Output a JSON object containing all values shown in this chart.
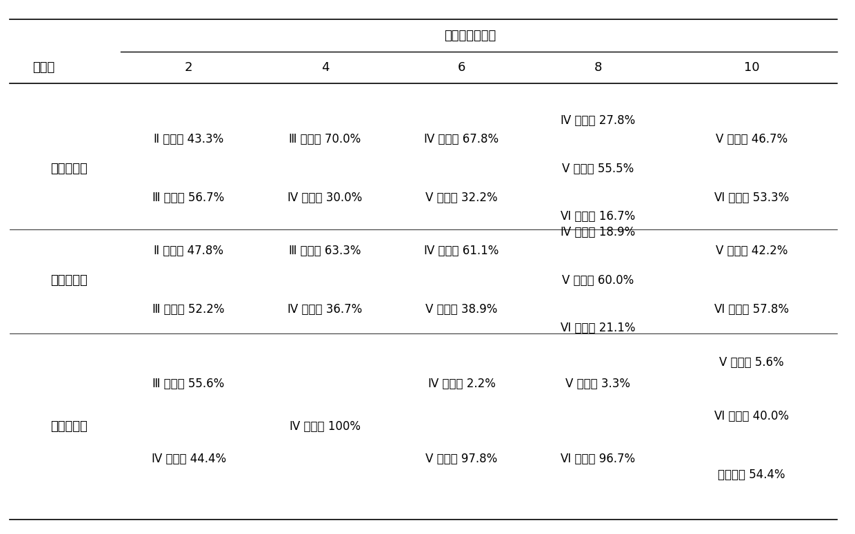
{
  "title_top": "培养时间（天）",
  "row_header": "实验组",
  "col_headers": [
    "2",
    "4",
    "6",
    "8",
    "10"
  ],
  "groups": [
    {
      "name": "扁藻饶料组",
      "cells": [
        [
          "Ⅱ期幼虫 43.3%",
          "Ⅲ期幼虫 70.0%",
          "Ⅳ期幼虫 67.8%",
          "Ⅳ期幼虫 27.8%\n\nⅤ期幼虫 55.5%\n\nⅥ期幼虫 16.7%",
          "Ⅴ期幼虫 46.7%\n\nⅥ期幼虫 53.3%"
        ],
        [
          "Ⅲ期幼虫 56.7%",
          "Ⅳ期幼虫 30.0%",
          "Ⅴ期幼虫 32.2%",
          "",
          ""
        ]
      ]
    },
    {
      "name": "金藻饶料组",
      "cells": [
        [
          "Ⅱ期幼虫 47.8%",
          "Ⅲ期幼虫 63.3%",
          "Ⅳ期幼虫 61.1%",
          "Ⅳ期幼虫 18.9%\n\nⅤ期幼虫 60.0%\n\nⅥ期幼虫 21.1%",
          "Ⅴ期幼虫 42.2%\n\nⅥ期幼虫 57.8%"
        ],
        [
          "Ⅲ期幼虫 52.2%",
          "Ⅳ期幼虫 36.7%",
          "Ⅴ期幼虫 38.9%",
          "",
          ""
        ]
      ]
    },
    {
      "name": "混合饶料组",
      "cells": [
        [
          "Ⅲ期幼虫 55.6%",
          "Ⅳ期幼虫 100%",
          "Ⅳ期幼虫 2.2%",
          "Ⅴ期幼虫 3.3%",
          "Ⅴ期幼虫 5.6%\n\nⅥ期幼虫 40.0%\n\n金星幼虫 54.4%"
        ],
        [
          "Ⅳ期幼虫 44.4%",
          "",
          "Ⅴ期幼虫 97.8%",
          "Ⅵ期幼虫 96.7%",
          ""
        ]
      ]
    }
  ],
  "font_size": 12,
  "bg_color": "#ffffff"
}
